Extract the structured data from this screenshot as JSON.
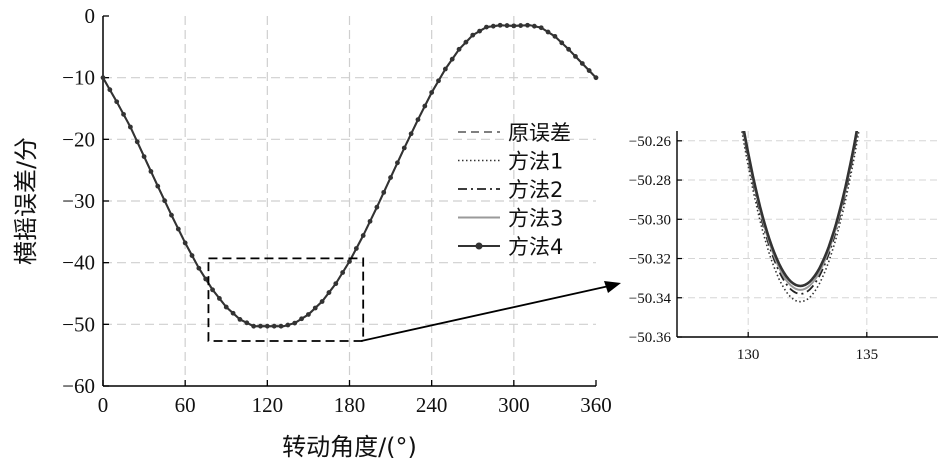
{
  "chart_data": [
    {
      "type": "line",
      "xlabel": "转动角度/(°)",
      "ylabel": "横摇误差/分",
      "xlim": [
        0,
        360
      ],
      "ylim": [
        -60,
        0
      ],
      "xticks": [
        0,
        60,
        120,
        180,
        240,
        300,
        360
      ],
      "yticks": [
        0,
        -10,
        -20,
        -30,
        -40,
        -50,
        -60
      ],
      "grid": true,
      "legend_position": "right",
      "legend": [
        "原误差",
        "方法1",
        "方法2",
        "方法3",
        "方法4"
      ],
      "curve": {
        "x": [
          0,
          10,
          20,
          30,
          40,
          50,
          60,
          70,
          80,
          90,
          100,
          110,
          120,
          130,
          132,
          140,
          150,
          160,
          170,
          180,
          190,
          200,
          210,
          220,
          230,
          240,
          250,
          260,
          270,
          280,
          290,
          300,
          310,
          312,
          320,
          330,
          340,
          350,
          360
        ],
        "y": [
          -10.0,
          -13.9,
          -18.0,
          -22.8,
          -27.6,
          -32.3,
          -36.8,
          -40.9,
          -44.4,
          -47.2,
          -49.2,
          -50.3,
          -50.3,
          -50.3,
          -50.3,
          -49.8,
          -48.4,
          -46.3,
          -43.4,
          -39.8,
          -35.6,
          -31.0,
          -26.2,
          -21.4,
          -16.8,
          -12.4,
          -8.6,
          -5.4,
          -3.1,
          -1.8,
          -1.5,
          -1.6,
          -1.5,
          -1.5,
          -1.9,
          -3.3,
          -5.4,
          -7.7,
          -10.0
        ]
      },
      "series": [
        {
          "name": "原误差",
          "style": "dashed",
          "color": "#555555"
        },
        {
          "name": "方法1",
          "style": "dotted",
          "color": "#333333"
        },
        {
          "name": "方法2",
          "style": "dashdot",
          "color": "#222222"
        },
        {
          "name": "方法3",
          "style": "solid",
          "color": "#9a9a9a"
        },
        {
          "name": "方法4",
          "style": "solid-marker",
          "color": "#333333"
        }
      ],
      "zoom_box": {
        "x": [
          77,
          190
        ],
        "y": [
          -52.7,
          -39.3
        ]
      }
    },
    {
      "type": "line",
      "role": "inset",
      "xlim": [
        127,
        138
      ],
      "ylim": [
        -50.36,
        -50.255
      ],
      "xticks": [
        130,
        135
      ],
      "yticks": [
        -50.26,
        -50.28,
        -50.3,
        -50.32,
        -50.34,
        -50.36
      ],
      "xtick_labels": [
        "130",
        "135"
      ],
      "ytick_labels": [
        "−50.26",
        "−50.28",
        "−50.30",
        "−50.32",
        "−50.34",
        "−50.36"
      ],
      "grid": true,
      "minimum_x": 132.2,
      "series": [
        {
          "name": "原误差",
          "min": -50.334,
          "k": 0.0141
        },
        {
          "name": "方法1",
          "min": -50.342,
          "k": 0.0143
        },
        {
          "name": "方法2",
          "min": -50.338,
          "k": 0.0142
        },
        {
          "name": "方法3",
          "min": -50.336,
          "k": 0.0141
        },
        {
          "name": "方法4",
          "min": -50.334,
          "k": 0.014
        }
      ]
    }
  ]
}
